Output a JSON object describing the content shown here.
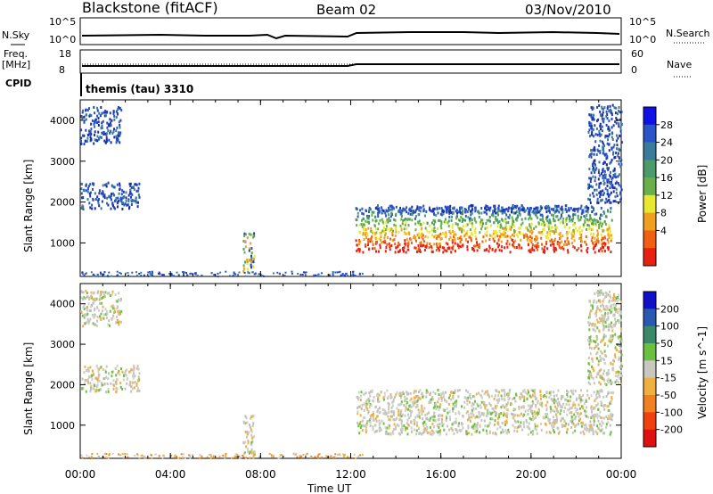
{
  "header": {
    "title": "Blackstone (fitACF)",
    "beam": "Beam 02",
    "date": "03/Nov/2010"
  },
  "status_panels": {
    "nsky_label": "N.Sky",
    "nsky_ticks": [
      "10^5",
      "10^0"
    ],
    "nsearch_label": "N.Search",
    "nsearch_ticks": [
      "10^5",
      "10^0"
    ],
    "freq_label": "Freq.",
    "freq_unit": "[MHz]",
    "freq_ticks": [
      "18",
      "8"
    ],
    "nave_label": "Nave",
    "nave_ticks": [
      "60",
      "0"
    ],
    "cpid_label": "CPID",
    "cpid_value": "themis (tau) 3310"
  },
  "chart_data": [
    {
      "type": "heatmap",
      "name": "power",
      "ylabel": "Slant Range [km]",
      "ylim": [
        180,
        4500
      ],
      "yticks": [
        1000,
        2000,
        3000,
        4000
      ],
      "xlim": [
        0,
        24
      ],
      "colorbar_label": "Power [dB]",
      "colorbar_ticks": [
        "4",
        "8",
        "12",
        "16",
        "20",
        "24",
        "28"
      ],
      "colorbar_colors": [
        "#1010e8",
        "#2a55c8",
        "#3a7a9a",
        "#4a9a6a",
        "#6ab04a",
        "#e8e830",
        "#f0a020",
        "#f06010",
        "#e82010"
      ],
      "regions": [
        {
          "x": [
            0.0,
            1.8
          ],
          "y": [
            3450,
            4350
          ],
          "level": "low"
        },
        {
          "x": [
            0.0,
            2.6
          ],
          "y": [
            1850,
            2500
          ],
          "level": "low"
        },
        {
          "x": [
            7.2,
            7.7
          ],
          "y": [
            300,
            1300
          ],
          "level": "mixed"
        },
        {
          "x": [
            12.2,
            23.6
          ],
          "y": [
            800,
            1900
          ],
          "level": "high"
        },
        {
          "x": [
            13.0,
            22.8
          ],
          "y": [
            1750,
            1950
          ],
          "level": "low"
        },
        {
          "x": [
            22.5,
            24.0
          ],
          "y": [
            2000,
            4400
          ],
          "level": "low"
        }
      ]
    },
    {
      "type": "heatmap",
      "name": "velocity",
      "ylabel": "Slant Range [km]",
      "ylim": [
        180,
        4500
      ],
      "yticks": [
        1000,
        2000,
        3000,
        4000
      ],
      "xlim": [
        0,
        24
      ],
      "colorbar_label": "Velocity [m s^-1]",
      "colorbar_ticks": [
        "200",
        "100",
        "50",
        "15",
        "-15",
        "-50",
        "-100",
        "-200"
      ],
      "colorbar_colors": [
        "#1010c8",
        "#2a5ab0",
        "#3a8a6a",
        "#6ac040",
        "#c8c8c0",
        "#f0b040",
        "#f08020",
        "#f04010",
        "#e01010"
      ],
      "regions": [
        {
          "x": [
            0.0,
            1.8
          ],
          "y": [
            3450,
            4350
          ],
          "level": "grey"
        },
        {
          "x": [
            0.0,
            2.6
          ],
          "y": [
            1850,
            2500
          ],
          "level": "grey"
        },
        {
          "x": [
            7.2,
            7.7
          ],
          "y": [
            300,
            1300
          ],
          "level": "grey"
        },
        {
          "x": [
            12.2,
            23.6
          ],
          "y": [
            800,
            1900
          ],
          "level": "grey"
        },
        {
          "x": [
            22.5,
            24.0
          ],
          "y": [
            2000,
            4400
          ],
          "level": "grey"
        }
      ]
    }
  ],
  "time_axis": {
    "label": "Time UT",
    "ticks": [
      "00:00",
      "04:00",
      "08:00",
      "12:00",
      "16:00",
      "20:00",
      "00:00"
    ]
  }
}
